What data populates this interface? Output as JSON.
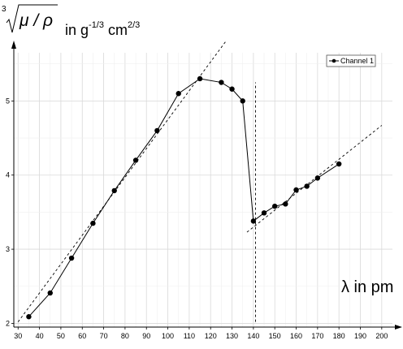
{
  "chart_data": {
    "type": "line",
    "ylabel": {
      "radical_index": "3",
      "radicand": "μ / ρ",
      "text_prefix": "in g",
      "exp1": "-1/3",
      "text_mid": " cm",
      "exp2": "2/3"
    },
    "xlabel": "λ in pm",
    "xlim": [
      28,
      205
    ],
    "ylim": [
      1.95,
      5.65
    ],
    "x_ticks": [
      30,
      40,
      50,
      60,
      70,
      80,
      90,
      100,
      110,
      120,
      130,
      140,
      150,
      160,
      170,
      180,
      190,
      200
    ],
    "y_ticks": [
      2,
      3,
      4,
      5
    ],
    "grid": true,
    "legend": {
      "position": "top-right",
      "entries": [
        "Channel 1"
      ]
    },
    "series": [
      {
        "name": "Channel 1",
        "x": [
          35,
          45,
          55,
          65,
          75,
          85,
          95,
          105,
          115,
          125,
          130,
          135,
          140,
          145,
          150,
          155,
          160,
          165,
          170,
          180
        ],
        "y": [
          2.09,
          2.41,
          2.88,
          3.35,
          3.79,
          4.2,
          4.6,
          5.1,
          5.3,
          5.25,
          5.16,
          5.0,
          3.38,
          3.49,
          3.58,
          3.61,
          3.8,
          3.85,
          3.96,
          4.15
        ]
      }
    ],
    "reference_lines": [
      {
        "x": [
          30,
          127
        ],
        "y": [
          2.02,
          5.8
        ]
      },
      {
        "x": [
          141,
          141
        ],
        "y": [
          2.02,
          5.25
        ]
      },
      {
        "x": [
          137,
          200
        ],
        "y": [
          3.23,
          4.67
        ]
      }
    ]
  }
}
